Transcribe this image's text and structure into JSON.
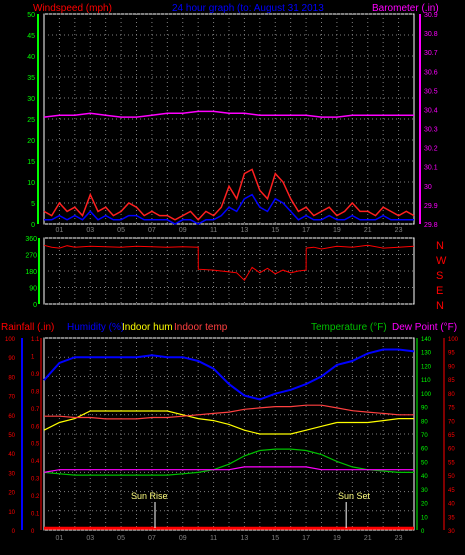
{
  "header": {
    "windspeed_label": "Windspeed (mph)",
    "title": "24 hour graph (to: August 31 2013",
    "barometer_label": "Barometer (.in)"
  },
  "bottom_header": {
    "rainfall_label": "Rainfall (.in)",
    "humidity_label": "Humidity (%)",
    "indoor_hum_label": "Indoor hum",
    "indoor_temp_label": "Indoor temp",
    "temperature_label": "Temperature (°F)",
    "dewpoint_label": "Dew Point (°F)"
  },
  "sun": {
    "rise_label": "Sun Rise",
    "set_label": "Sun Set",
    "rise_hour": 7.2,
    "set_hour": 19.6
  },
  "colors": {
    "windspeed": "#ff2020",
    "windgust": "#0000ff",
    "barometer": "#ff00ff",
    "direction": "#ff0000",
    "rainfall": "#ff0000",
    "humidity": "#0000ff",
    "indoor_hum": "#ffff00",
    "indoor_temp": "#ff4040",
    "temperature": "#00c000",
    "dewpoint": "#ff00ff",
    "grid": "#808080",
    "axis_green": "#00ff00",
    "bar_axis": "#ff00ff",
    "hum_axis": "#0000ff",
    "temp_axis": "#00ff00",
    "dew_axis": "#ff0000"
  },
  "chart_data": [
    {
      "type": "line",
      "name": "wind-barometer",
      "x_ticks": [
        "01",
        "03",
        "05",
        "07",
        "09",
        "11",
        "13",
        "15",
        "17",
        "19",
        "21",
        "23"
      ],
      "x_range": [
        0,
        24
      ],
      "left_axis": {
        "label": "Windspeed (mph)",
        "range": [
          0,
          50
        ],
        "ticks": [
          "0",
          "5",
          "10",
          "15",
          "20",
          "25",
          "30",
          "35",
          "40",
          "45",
          "50"
        ]
      },
      "right_axis": {
        "label": "Barometer (.in)",
        "range": [
          29.8,
          30.9
        ],
        "ticks": [
          "29.8",
          "29.9",
          "30",
          "30.1",
          "30.2",
          "30.3",
          "30.4",
          "30.5",
          "30.6",
          "30.7",
          "30.8",
          "30.9"
        ]
      },
      "barometer": {
        "x": [
          0,
          1,
          2,
          3,
          4,
          5,
          6,
          7,
          8,
          9,
          10,
          11,
          12,
          13,
          14,
          15,
          16,
          17,
          18,
          19,
          20,
          21,
          22,
          23,
          24
        ],
        "y": [
          30.36,
          30.37,
          30.37,
          30.38,
          30.37,
          30.36,
          30.36,
          30.37,
          30.38,
          30.38,
          30.39,
          30.39,
          30.38,
          30.38,
          30.37,
          30.37,
          30.37,
          30.37,
          30.36,
          30.36,
          30.37,
          30.37,
          30.37,
          30.37,
          30.37
        ]
      },
      "windspeed": {
        "x": [
          0,
          0.5,
          1,
          1.5,
          2,
          2.5,
          3,
          3.5,
          4,
          4.5,
          5,
          5.5,
          6,
          6.5,
          7,
          7.5,
          8,
          8.5,
          9,
          9.5,
          10,
          10.5,
          11,
          11.5,
          12,
          12.5,
          13,
          13.5,
          14,
          14.5,
          15,
          15.5,
          16,
          16.5,
          17,
          17.5,
          18,
          18.5,
          19,
          19.5,
          20,
          20.5,
          21,
          21.5,
          22,
          22.5,
          23,
          23.5,
          24
        ],
        "y": [
          3,
          2,
          5,
          3,
          4,
          2,
          7,
          3,
          4,
          2,
          3,
          5,
          4,
          2,
          3,
          2,
          2,
          1,
          2,
          3,
          1,
          3,
          2,
          4,
          9,
          6,
          12,
          13,
          8,
          6,
          12,
          10,
          6,
          3,
          4,
          2,
          3,
          4,
          2,
          3,
          5,
          3,
          3,
          2,
          4,
          3,
          2,
          3,
          2
        ]
      },
      "windgust": {
        "x": [
          0,
          0.5,
          1,
          1.5,
          2,
          2.5,
          3,
          3.5,
          4,
          4.5,
          5,
          5.5,
          6,
          6.5,
          7,
          7.5,
          8,
          8.5,
          9,
          9.5,
          10,
          10.5,
          11,
          11.5,
          12,
          12.5,
          13,
          13.5,
          14,
          14.5,
          15,
          15.5,
          16,
          16.5,
          17,
          17.5,
          18,
          18.5,
          19,
          19.5,
          20,
          20.5,
          21,
          21.5,
          22,
          22.5,
          23,
          23.5,
          24
        ],
        "y": [
          1,
          1,
          2,
          1,
          2,
          1,
          3,
          1,
          2,
          1,
          1,
          2,
          2,
          1,
          1,
          1,
          1,
          0,
          1,
          1,
          0,
          1,
          1,
          2,
          4,
          3,
          6,
          7,
          4,
          3,
          6,
          5,
          3,
          1,
          2,
          1,
          1,
          2,
          1,
          1,
          2,
          1,
          1,
          1,
          2,
          1,
          1,
          1,
          1
        ]
      }
    },
    {
      "type": "line",
      "name": "wind-direction",
      "y_ticks": [
        "0",
        "90",
        "180",
        "270",
        "360"
      ],
      "y_range": [
        0,
        360
      ],
      "compass_labels": [
        "N",
        "W",
        "S",
        "E",
        "N"
      ],
      "x": [
        0,
        0.5,
        1,
        1.5,
        2,
        3,
        4,
        5,
        6,
        7,
        8,
        9,
        10,
        10.01,
        11,
        11.5,
        12,
        12.5,
        13,
        13.5,
        14,
        14.5,
        15,
        15.5,
        16,
        16.5,
        17,
        17.01,
        17.5,
        18,
        19,
        20,
        21,
        22,
        23,
        24
      ],
      "y": [
        320,
        310,
        305,
        318,
        310,
        315,
        312,
        310,
        315,
        312,
        310,
        312,
        310,
        190,
        185,
        180,
        175,
        170,
        130,
        200,
        170,
        195,
        165,
        185,
        170,
        180,
        185,
        305,
        310,
        300,
        315,
        310,
        320,
        305,
        310,
        315
      ]
    },
    {
      "type": "line",
      "name": "rain-humidity-temperature",
      "axes": {
        "rainfall": {
          "label": "Rainfall (.in)",
          "range": [
            0,
            1.1
          ],
          "ticks": [
            "0",
            "0.1",
            "0.2",
            "0.3",
            "0.4",
            "0.5",
            "0.6",
            "0.7",
            "0.8",
            "0.9",
            "1",
            "1.1"
          ]
        },
        "humidity": {
          "label": "Humidity (%)",
          "range": [
            0,
            100
          ],
          "ticks": [
            "0",
            "10",
            "20",
            "30",
            "40",
            "50",
            "60",
            "70",
            "80",
            "90",
            "100"
          ]
        },
        "temperature": {
          "label": "Temperature (°F)",
          "range": [
            0,
            140
          ],
          "ticks": [
            "0",
            "10",
            "20",
            "30",
            "40",
            "50",
            "60",
            "70",
            "80",
            "90",
            "100",
            "110",
            "120",
            "130",
            "140"
          ]
        },
        "dewpoint": {
          "label": "Dew Point (°F)",
          "range": [
            30,
            100
          ],
          "ticks": [
            "30",
            "35",
            "40",
            "45",
            "50",
            "55",
            "60",
            "65",
            "70",
            "75",
            "80",
            "85",
            "90",
            "95",
            "100"
          ]
        }
      },
      "series": [
        {
          "name": "Rainfall (.in)",
          "axis": "rainfall",
          "x": [
            0,
            24
          ],
          "y": [
            0.01,
            0.01
          ]
        },
        {
          "name": "Humidity (%)",
          "axis": "humidity",
          "x": [
            0,
            1,
            2,
            3,
            4,
            5,
            6,
            7,
            8,
            9,
            10,
            11,
            12,
            13,
            14,
            15,
            16,
            17,
            18,
            19,
            20,
            21,
            22,
            23,
            24
          ],
          "y": [
            78,
            87,
            90,
            90,
            90,
            90,
            90,
            91,
            90,
            90,
            88,
            84,
            76,
            70,
            68,
            71,
            73,
            76,
            80,
            86,
            88,
            92,
            94,
            94,
            93
          ]
        },
        {
          "name": "Indoor hum",
          "axis": "humidity",
          "x": [
            0,
            1,
            2,
            3,
            4,
            5,
            6,
            7,
            8,
            9,
            10,
            11,
            12,
            13,
            14,
            15,
            16,
            17,
            18,
            19,
            20,
            21,
            22,
            23,
            24
          ],
          "y": [
            52,
            56,
            58,
            62,
            62,
            62,
            62,
            62,
            62,
            60,
            58,
            57,
            55,
            52,
            50,
            50,
            50,
            52,
            54,
            56,
            56,
            56,
            57,
            58,
            58
          ]
        },
        {
          "name": "Indoor temp",
          "axis": "temperature",
          "x": [
            0,
            1,
            2,
            3,
            4,
            5,
            6,
            7,
            8,
            9,
            10,
            11,
            12,
            13,
            14,
            15,
            16,
            17,
            18,
            19,
            20,
            21,
            22,
            23,
            24
          ],
          "y": [
            83,
            83,
            82,
            82,
            81,
            81,
            81,
            82,
            82,
            83,
            84,
            85,
            86,
            88,
            89,
            90,
            90,
            91,
            91,
            89,
            87,
            86,
            85,
            84,
            84
          ]
        },
        {
          "name": "Temperature (°F)",
          "axis": "temperature",
          "x": [
            0,
            1,
            2,
            3,
            4,
            5,
            6,
            7,
            8,
            9,
            10,
            11,
            12,
            13,
            14,
            15,
            16,
            17,
            18,
            19,
            20,
            21,
            22,
            23,
            24
          ],
          "y": [
            42,
            41,
            40,
            40,
            40,
            40,
            40,
            40,
            40,
            41,
            42,
            44,
            48,
            54,
            58,
            59,
            59,
            58,
            55,
            50,
            46,
            44,
            43,
            42,
            42
          ]
        },
        {
          "name": "Dew Point (°F)",
          "axis": "dewpoint",
          "x": [
            0,
            1,
            2,
            3,
            4,
            5,
            6,
            7,
            8,
            9,
            10,
            11,
            12,
            13,
            14,
            15,
            16,
            17,
            18,
            19,
            20,
            21,
            22,
            23,
            24
          ],
          "y": [
            51,
            52,
            52,
            52,
            52,
            52,
            52,
            52,
            52,
            52,
            52,
            52,
            52,
            53,
            53,
            53,
            53,
            53,
            52,
            52,
            52,
            52,
            52,
            52,
            52
          ]
        }
      ]
    }
  ]
}
